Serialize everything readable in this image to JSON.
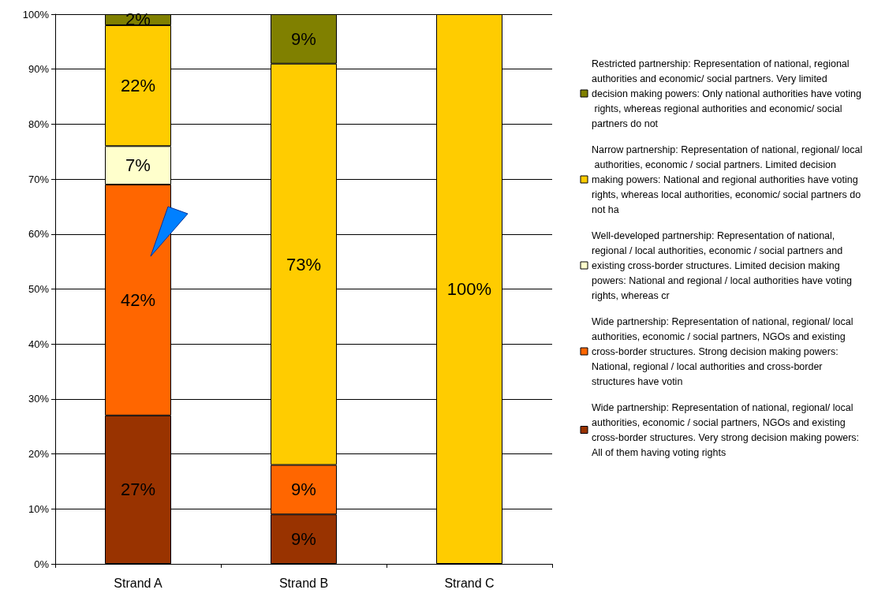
{
  "chart_data": {
    "type": "bar",
    "stacked": true,
    "categories": [
      "Strand A",
      "Strand B",
      "Strand C"
    ],
    "series": [
      {
        "name": "Wide partnership: Representation of national, regional/ local authorities, economic / social partners, NGOs and existing cross-border structures. Very strong decision making powers: All of them having voting rights",
        "color": "#993300",
        "values": [
          27,
          9,
          null
        ],
        "value_labels": [
          "27%",
          "9%",
          null
        ]
      },
      {
        "name": "Wide partnership: Representation of national, regional/ local authorities, economic / social partners, NGOs and existing cross-border structures. Strong decision making powers: National, regional / local authorities and cross-border structures have votin",
        "color": "#ff6600",
        "values": [
          42,
          9,
          null
        ],
        "value_labels": [
          "42%",
          "9%",
          null
        ]
      },
      {
        "name": "Well-developed partnership: Representation of national, regional / local authorities, economic / social partners and existing cross-border structures. Limited decision making powers: National and regional / local authorities have voting rights, whereas cr",
        "color": "#ffffcc",
        "values": [
          7,
          null,
          null
        ],
        "value_labels": [
          "7%",
          null,
          null
        ]
      },
      {
        "name": "Narrow partnership: Representation of national, regional/ local authorities, economic / social partners. Limited decision making powers: National and regional authorities have voting rights, whereas local authorities, economic/ social partners do not ha",
        "color": "#ffcc00",
        "values": [
          22,
          73,
          100
        ],
        "value_labels": [
          "22%",
          "73%",
          "100%"
        ]
      },
      {
        "name": "Restricted partnership: Representation of national, regional authorities and economic/ social partners. Very limited decision making powers: Only national authorities have voting rights, whereas regional authorities and economic/ social partners do not",
        "color": "#808000",
        "values": [
          2,
          9,
          null
        ],
        "value_labels": [
          "2%",
          "9%",
          null
        ]
      }
    ],
    "ylim": [
      0,
      100
    ],
    "yticks": [
      {
        "value": 0,
        "label": "0%"
      },
      {
        "value": 10,
        "label": "10%"
      },
      {
        "value": 20,
        "label": "20%"
      },
      {
        "value": 30,
        "label": "30%"
      },
      {
        "value": 40,
        "label": "40%"
      },
      {
        "value": 50,
        "label": "50%"
      },
      {
        "value": 60,
        "label": "60%"
      },
      {
        "value": 70,
        "label": "70%"
      },
      {
        "value": 80,
        "label": "80%"
      },
      {
        "value": 90,
        "label": "90%"
      },
      {
        "value": 100,
        "label": "100%"
      }
    ],
    "grid": "y",
    "legend": "right"
  }
}
